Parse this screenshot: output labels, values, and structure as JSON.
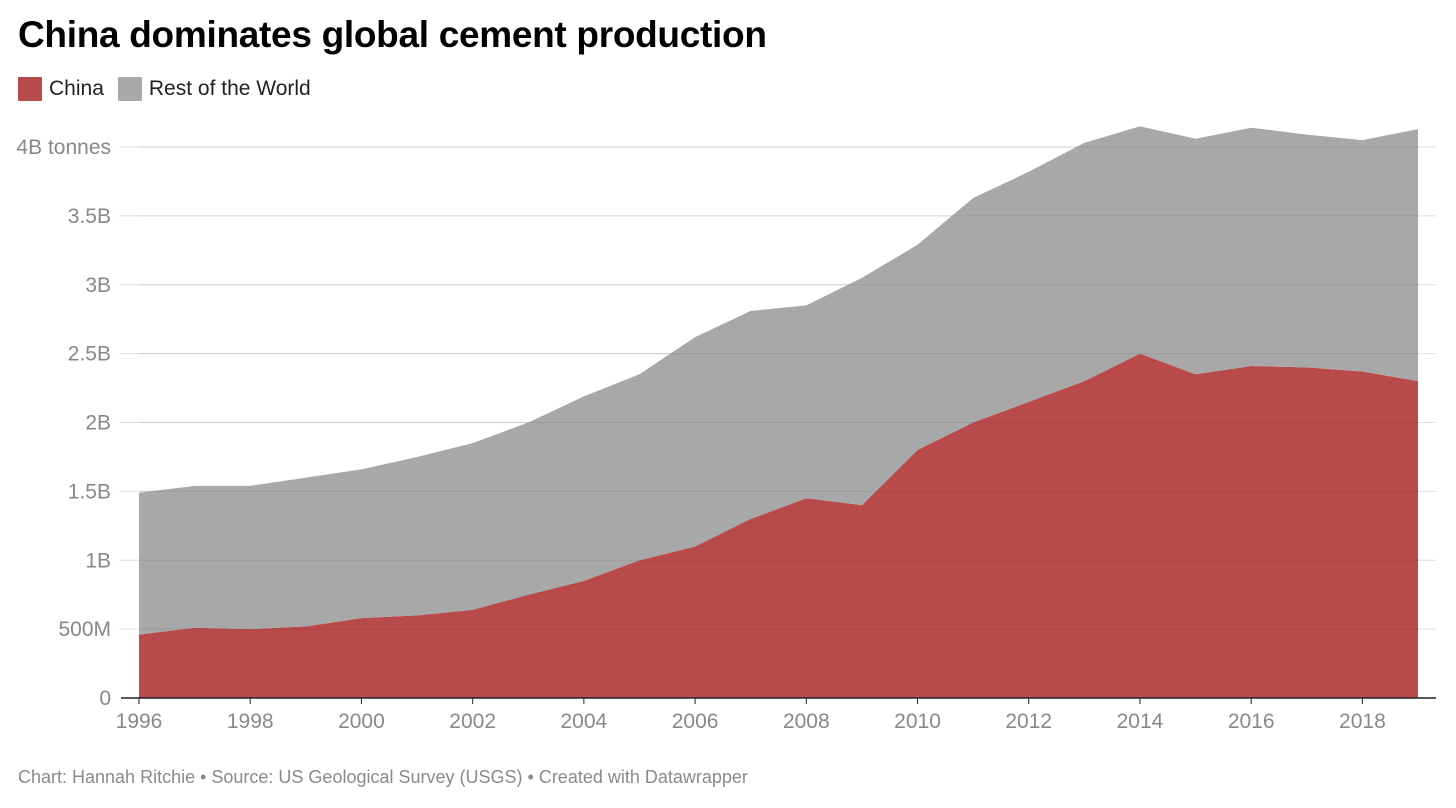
{
  "header": {
    "title": "China dominates global cement production"
  },
  "legend": {
    "items": [
      {
        "label": "China",
        "color": "#b94a4b"
      },
      {
        "label": "Rest of the World",
        "color": "#a8a8a8"
      }
    ]
  },
  "footer": {
    "credit": "Chart: Hannah Ritchie • Source: US Geological Survey (USGS) • Created with Datawrapper"
  },
  "chart_data": {
    "type": "area",
    "stacked": true,
    "x": [
      1996,
      1997,
      1998,
      1999,
      2000,
      2001,
      2002,
      2003,
      2004,
      2005,
      2006,
      2007,
      2008,
      2009,
      2010,
      2011,
      2012,
      2013,
      2014,
      2015,
      2016,
      2017,
      2018,
      2019
    ],
    "series": [
      {
        "name": "China",
        "color": "#b94a4b",
        "values": [
          0.46,
          0.51,
          0.5,
          0.52,
          0.58,
          0.6,
          0.64,
          0.75,
          0.85,
          1.0,
          1.1,
          1.3,
          1.45,
          1.4,
          1.8,
          2.0,
          2.15,
          2.3,
          2.5,
          2.35,
          2.41,
          2.4,
          2.37,
          2.3
        ]
      },
      {
        "name": "Rest of the World",
        "color": "#a8a8a8",
        "values": [
          1.03,
          1.03,
          1.04,
          1.08,
          1.08,
          1.15,
          1.21,
          1.25,
          1.34,
          1.35,
          1.52,
          1.51,
          1.4,
          1.65,
          1.49,
          1.63,
          1.67,
          1.73,
          1.65,
          1.71,
          1.73,
          1.69,
          1.68,
          1.83
        ]
      }
    ],
    "ylim": [
      0,
      4
    ],
    "yticks": [
      {
        "value": 0,
        "label": "0"
      },
      {
        "value": 0.5,
        "label": "500M"
      },
      {
        "value": 1,
        "label": "1B"
      },
      {
        "value": 1.5,
        "label": "1.5B"
      },
      {
        "value": 2,
        "label": "2B"
      },
      {
        "value": 2.5,
        "label": "2.5B"
      },
      {
        "value": 3,
        "label": "3B"
      },
      {
        "value": 3.5,
        "label": "3.5B"
      },
      {
        "value": 4,
        "label": "4B tonnes"
      }
    ],
    "xticks": [
      1996,
      1998,
      2000,
      2002,
      2004,
      2006,
      2008,
      2010,
      2012,
      2014,
      2016,
      2018
    ],
    "grid": true,
    "legend_position": "top-left"
  }
}
